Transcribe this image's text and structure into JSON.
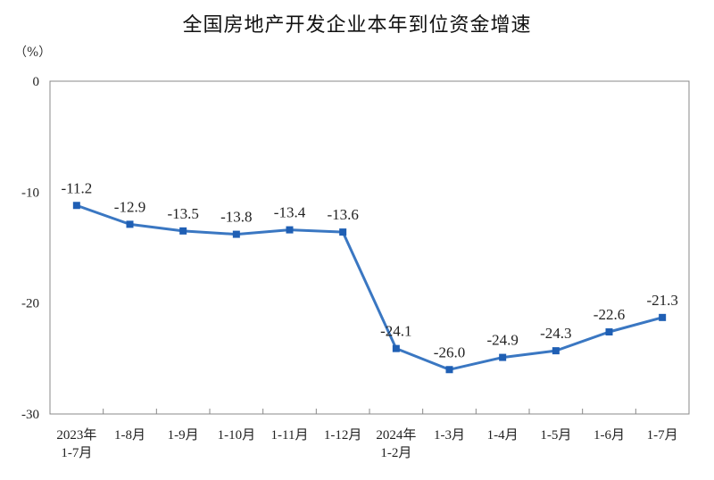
{
  "chart_data": {
    "type": "line",
    "title": "全国房地产开发企业本年到位资金增速",
    "unit": "（%）",
    "categories": [
      [
        "2023年",
        "1-7月"
      ],
      [
        "1-8月"
      ],
      [
        "1-9月"
      ],
      [
        "1-10月"
      ],
      [
        "1-11月"
      ],
      [
        "1-12月"
      ],
      [
        "2024年",
        "1-2月"
      ],
      [
        "1-3月"
      ],
      [
        "1-4月"
      ],
      [
        "1-5月"
      ],
      [
        "1-6月"
      ],
      [
        "1-7月"
      ]
    ],
    "values": [
      -11.2,
      -12.9,
      -13.5,
      -13.8,
      -13.4,
      -13.6,
      -24.1,
      -26.0,
      -24.9,
      -24.3,
      -22.6,
      -21.3
    ],
    "value_labels": [
      "-11.2",
      "-12.9",
      "-13.5",
      "-13.8",
      "-13.4",
      "-13.6",
      "-24.1",
      "-26.0",
      "-24.9",
      "-24.3",
      "-22.6",
      "-21.3"
    ],
    "yticks": [
      0,
      -10,
      -20,
      -30
    ],
    "ylim": [
      -30,
      0
    ],
    "grid": false,
    "colors": {
      "line": "#3a77c2",
      "marker": "#1f5fb4",
      "axis": "#888888"
    }
  }
}
